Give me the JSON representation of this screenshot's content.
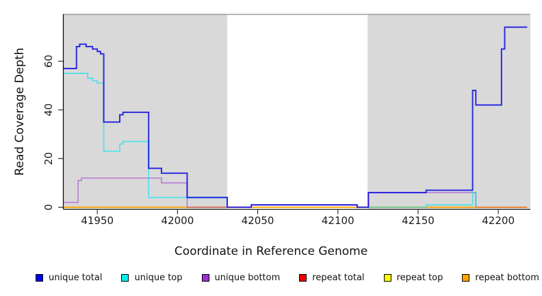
{
  "figure": {
    "x_axis_title": "Coordinate in Reference Genome",
    "y_axis_title": "Read Coverage Depth"
  },
  "legend": {
    "items": [
      {
        "label": "unique total",
        "color": "#0000EE"
      },
      {
        "label": "unique top",
        "color": "#00EEEE"
      },
      {
        "label": "unique bottom",
        "color": "#9B30D0"
      },
      {
        "label": "repeat total",
        "color": "#EE0000"
      },
      {
        "label": "repeat top",
        "color": "#FFFF00"
      },
      {
        "label": "repeat bottom",
        "color": "#FFA500"
      }
    ]
  },
  "chart_data": {
    "type": "line",
    "step": true,
    "title": "",
    "xlabel": "Coordinate in Reference Genome",
    "ylabel": "Read Coverage Depth",
    "x_range": [
      41929,
      42220
    ],
    "y_range": [
      -1,
      80.5
    ],
    "x_ticks": [
      41950,
      42000,
      42050,
      42100,
      42150,
      42200
    ],
    "y_ticks": [
      0,
      20,
      40,
      60
    ],
    "grid": false,
    "legend_position": "bottom",
    "background_bands": [
      {
        "x0": 41929,
        "x1": 42031,
        "color": "#D9D9D9"
      },
      {
        "x0": 42118.5,
        "x1": 42220,
        "color": "#D9D9D9"
      }
    ],
    "series": [
      {
        "name": "repeat top",
        "color": "#FFFF00",
        "opacity": 0.9,
        "width": 1.6,
        "segments": [
          [
            [
              41929,
              0
            ],
            [
              42218,
              0
            ]
          ]
        ]
      },
      {
        "name": "repeat total",
        "color": "#EE0000",
        "opacity": 0.6,
        "width": 1.6,
        "segments": [
          [
            [
              41929,
              0
            ],
            [
              42218,
              0
            ]
          ]
        ]
      },
      {
        "name": "repeat bottom",
        "color": "#FFA500",
        "opacity": 0.95,
        "width": 1.8,
        "segments": [
          [
            [
              41929,
              0
            ],
            [
              42186,
              0
            ]
          ]
        ]
      },
      {
        "name": "unique bottom",
        "color": "#9B30D0",
        "opacity": 0.55,
        "width": 1.6,
        "segments": [
          [
            [
              41929,
              2
            ],
            [
              41938,
              11
            ],
            [
              41940,
              12
            ],
            [
              41990,
              10
            ],
            [
              42006,
              0
            ],
            [
              42046,
              1
            ],
            [
              42112,
              0
            ],
            [
              42119,
              6
            ],
            [
              42186,
              0
            ]
          ]
        ]
      },
      {
        "name": "unique top",
        "color": "#00E5EE",
        "opacity": 0.6,
        "width": 1.8,
        "segments": [
          [
            [
              41929,
              55
            ],
            [
              41944,
              53
            ],
            [
              41947,
              52
            ],
            [
              41950,
              51
            ],
            [
              41954,
              23
            ],
            [
              41964,
              26
            ],
            [
              41966,
              27
            ],
            [
              41982,
              4
            ],
            [
              42031,
              0
            ]
          ],
          [
            [
              42119,
              0
            ],
            [
              42155,
              1
            ],
            [
              42184,
              6
            ],
            [
              42186,
              0
            ]
          ]
        ]
      },
      {
        "name": "unique total",
        "color": "#0000E0",
        "opacity": 0.8,
        "width": 2,
        "segments": [
          [
            [
              41929,
              57
            ],
            [
              41937,
              66
            ],
            [
              41939,
              67
            ],
            [
              41943,
              66
            ],
            [
              41947,
              65
            ],
            [
              41950,
              64
            ],
            [
              41952,
              63
            ],
            [
              41954,
              35
            ],
            [
              41964,
              38
            ],
            [
              41966,
              39
            ],
            [
              41982,
              16
            ],
            [
              41990,
              14
            ],
            [
              42006,
              4
            ],
            [
              42031,
              0
            ],
            [
              42046,
              1
            ],
            [
              42112,
              0
            ],
            [
              42119,
              6
            ],
            [
              42155,
              7
            ],
            [
              42184,
              48
            ],
            [
              42186,
              42
            ],
            [
              42202,
              65
            ],
            [
              42204,
              74
            ],
            [
              42218,
              74
            ]
          ]
        ]
      }
    ]
  }
}
